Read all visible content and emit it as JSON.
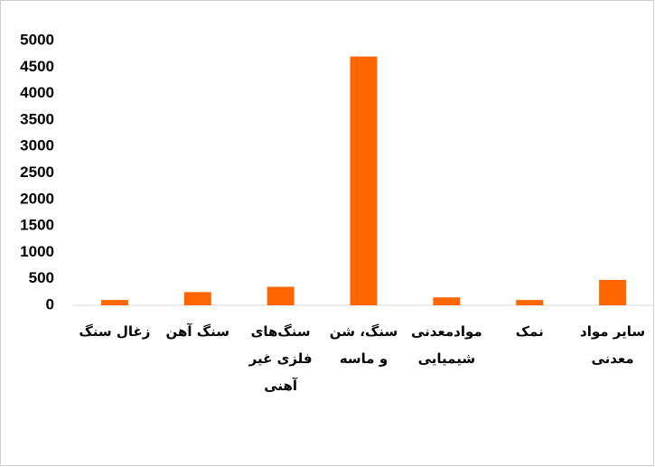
{
  "chart_data": {
    "type": "bar",
    "categories": [
      "زغال سنگ",
      "سنگ آهن",
      "سنگ‌های فلزی غیر آهنی",
      "سنگ، شن و ماسه",
      "موادمعدنی شیمیایی",
      "نمک",
      "سایر مواد معدنی"
    ],
    "values": [
      100,
      250,
      350,
      4700,
      150,
      100,
      480
    ],
    "color": "#ff6600",
    "ylim": [
      0,
      5000
    ],
    "yticks": [
      0,
      500,
      1000,
      1500,
      2000,
      2500,
      3000,
      3500,
      4000,
      4500,
      5000
    ],
    "grid": false
  }
}
